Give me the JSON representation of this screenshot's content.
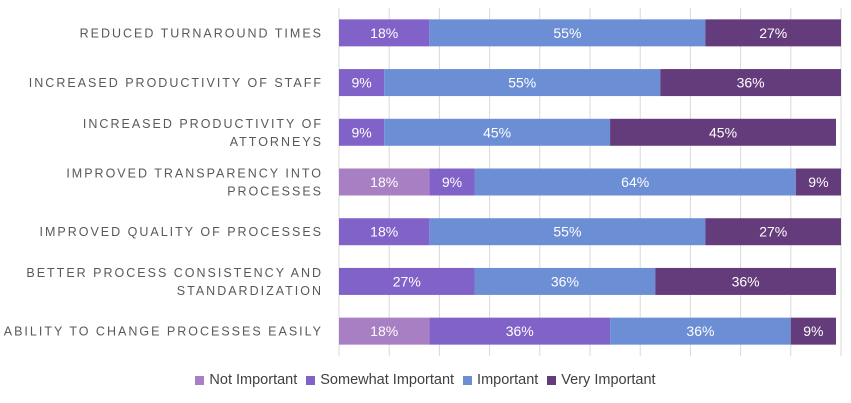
{
  "chart_data": {
    "type": "bar",
    "orientation": "horizontal",
    "stacked": "100%",
    "categories": [
      [
        "REDUCED TURNAROUND TIMES"
      ],
      [
        "INCREASED PRODUCTIVITY OF STAFF"
      ],
      [
        "INCREASED PRODUCTIVITY OF",
        "ATTORNEYS"
      ],
      [
        "IMPROVED TRANSPARENCY INTO",
        "PROCESSES"
      ],
      [
        "IMPROVED QUALITY OF PROCESSES"
      ],
      [
        "BETTER PROCESS CONSISTENCY AND",
        "STANDARDIZATION"
      ],
      [
        "ABILITY TO CHANGE PROCESSES EASILY"
      ]
    ],
    "series": [
      {
        "name": "Not Important",
        "color": "#A97FC3",
        "values": [
          0,
          0,
          0,
          18,
          0,
          0,
          18
        ]
      },
      {
        "name": "Somewhat Important",
        "color": "#8062C8",
        "values": [
          18,
          9,
          9,
          9,
          18,
          27,
          36
        ]
      },
      {
        "name": "Important",
        "color": "#6C8ED5",
        "values": [
          55,
          55,
          45,
          64,
          55,
          36,
          36
        ]
      },
      {
        "name": "Very Important",
        "color": "#643B7B",
        "values": [
          27,
          36,
          45,
          9,
          27,
          36,
          9
        ]
      }
    ],
    "value_suffix": "%",
    "xlim": [
      0,
      100
    ],
    "grid": true,
    "legend": "bottom"
  }
}
